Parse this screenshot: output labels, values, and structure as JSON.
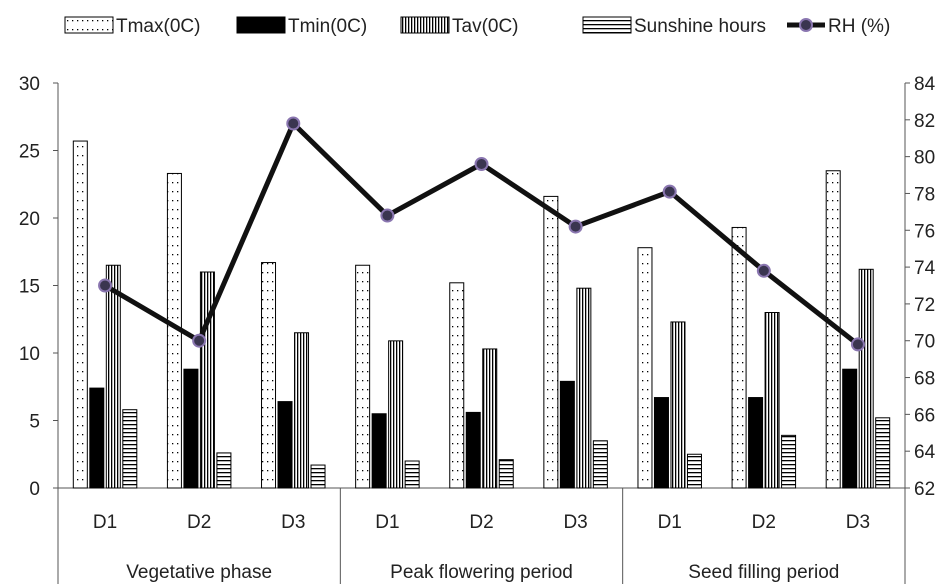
{
  "chart_data": {
    "type": "bar",
    "title": "",
    "groups": [
      "Vegetative phase",
      "Peak flowering period",
      "Seed filling period"
    ],
    "categories": [
      "D1",
      "D2",
      "D3",
      "D1",
      "D2",
      "D3",
      "D1",
      "D2",
      "D3"
    ],
    "series": [
      {
        "name": "Tmax(0C)",
        "axis": "left",
        "type": "bar",
        "pattern": "dots",
        "values": [
          25.7,
          23.3,
          16.7,
          16.5,
          15.2,
          21.6,
          17.8,
          19.3,
          23.5
        ]
      },
      {
        "name": "Tmin(0C)",
        "axis": "left",
        "type": "bar",
        "pattern": "solid",
        "values": [
          7.4,
          8.8,
          6.4,
          5.5,
          5.6,
          7.9,
          6.7,
          6.7,
          8.8
        ]
      },
      {
        "name": "Tav(0C)",
        "axis": "left",
        "type": "bar",
        "pattern": "vertical-lines",
        "values": [
          16.5,
          16.0,
          11.5,
          10.9,
          10.3,
          14.8,
          12.3,
          13.0,
          16.2
        ]
      },
      {
        "name": "Sunshine hours",
        "axis": "left",
        "type": "bar",
        "pattern": "horizontal-lines",
        "values": [
          5.8,
          2.6,
          1.7,
          2.0,
          2.1,
          3.5,
          2.5,
          3.9,
          5.2
        ]
      },
      {
        "name": "RH (%)",
        "axis": "right",
        "type": "line",
        "values": [
          73.0,
          70.0,
          81.8,
          76.8,
          79.6,
          76.2,
          78.1,
          73.8,
          69.8
        ]
      }
    ],
    "y_left": {
      "min": 0,
      "max": 30,
      "ticks": [
        0,
        5,
        10,
        15,
        20,
        25,
        30
      ]
    },
    "y_right": {
      "min": 62,
      "max": 84,
      "ticks": [
        62,
        64,
        66,
        68,
        70,
        72,
        74,
        76,
        78,
        80,
        82,
        84
      ]
    },
    "legend_position": "top",
    "grid": false
  },
  "colors": {
    "line": "#111111",
    "marker_fill": "#3a3550",
    "marker_edge": "#8a76b0",
    "bar_edge": "#000000"
  }
}
